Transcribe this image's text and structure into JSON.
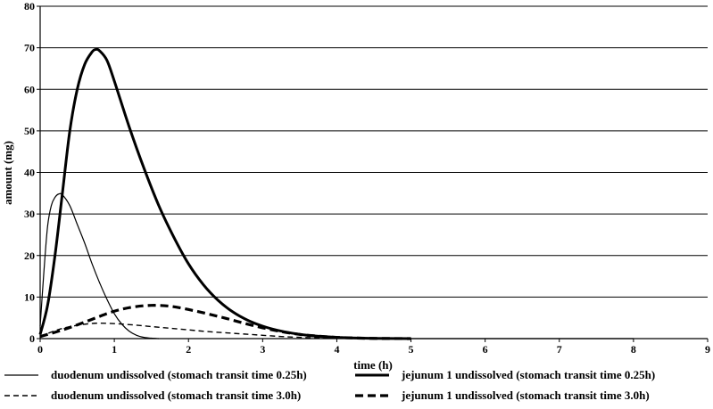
{
  "chart_data": {
    "type": "line",
    "xlabel": "time (h)",
    "ylabel": "amount (mg)",
    "xlim": [
      0,
      9
    ],
    "ylim": [
      0,
      80
    ],
    "xticks": [
      0,
      1,
      2,
      3,
      4,
      5,
      6,
      7,
      8,
      9
    ],
    "yticks": [
      0,
      10,
      20,
      30,
      40,
      50,
      60,
      70,
      80
    ],
    "grid": "horizontal",
    "legend_position": "bottom",
    "series": [
      {
        "name": "duodenum undissolved (stomach transit time 0.25h)",
        "style": "thin-solid",
        "color": "#000000",
        "x": [
          0,
          0.05,
          0.1,
          0.15,
          0.2,
          0.25,
          0.3,
          0.4,
          0.5,
          0.6,
          0.7,
          0.8,
          0.9,
          1.0,
          1.1,
          1.2,
          1.3,
          1.4,
          1.5,
          1.6
        ],
        "y": [
          3,
          16,
          27,
          32,
          34,
          34.8,
          34.6,
          32,
          27.5,
          23,
          18,
          13.5,
          9.5,
          6,
          3.5,
          1.8,
          0.8,
          0.3,
          0.1,
          0
        ]
      },
      {
        "name": "jejunum 1 undissolved (stomach transit time 0.25h)",
        "style": "thick-solid",
        "color": "#000000",
        "x": [
          0,
          0.1,
          0.2,
          0.3,
          0.4,
          0.5,
          0.6,
          0.7,
          0.75,
          0.8,
          0.9,
          1.0,
          1.2,
          1.4,
          1.6,
          1.8,
          2.0,
          2.2,
          2.4,
          2.6,
          2.8,
          3.0,
          3.2,
          3.4,
          3.6,
          3.8,
          4.0,
          4.2,
          4.5,
          5.0
        ],
        "y": [
          1,
          8,
          20,
          35,
          50,
          60,
          66,
          69,
          69.6,
          69.3,
          67,
          62,
          51,
          41,
          32,
          24.5,
          18,
          13,
          9.2,
          6.4,
          4.4,
          3,
          2,
          1.3,
          0.8,
          0.5,
          0.3,
          0.15,
          0.05,
          0
        ]
      },
      {
        "name": "duodenum undissolved (stomach transit time 3.0h)",
        "style": "thin-dashed",
        "color": "#000000",
        "x": [
          0,
          0.25,
          0.5,
          0.75,
          1.0,
          1.25,
          1.5,
          1.75,
          2.0,
          2.25,
          2.5,
          2.75,
          3.0,
          3.25,
          3.5,
          4.0,
          4.5,
          5.0
        ],
        "y": [
          0.5,
          2.2,
          3.2,
          3.7,
          3.6,
          3.3,
          2.9,
          2.5,
          2.1,
          1.7,
          1.4,
          1.1,
          0.8,
          0.5,
          0.3,
          0.1,
          0.03,
          0
        ]
      },
      {
        "name": "jejunum 1 undissolved (stomach transit time 3.0h)",
        "style": "thick-dashed",
        "color": "#000000",
        "x": [
          0,
          0.25,
          0.5,
          0.75,
          1.0,
          1.25,
          1.5,
          1.75,
          2.0,
          2.25,
          2.5,
          2.75,
          3.0,
          3.25,
          3.5,
          3.75,
          4.0,
          4.25,
          4.5,
          5.0
        ],
        "y": [
          0.5,
          1.8,
          3.3,
          5,
          6.6,
          7.6,
          8,
          7.8,
          7,
          6,
          4.9,
          3.7,
          2.6,
          1.7,
          1,
          0.6,
          0.3,
          0.15,
          0.05,
          0
        ]
      }
    ],
    "extra_lines": [
      {
        "x": [
          5,
          6,
          7,
          8
        ],
        "y": [
          0,
          0,
          0,
          0
        ],
        "style": "thin-solid"
      }
    ]
  }
}
